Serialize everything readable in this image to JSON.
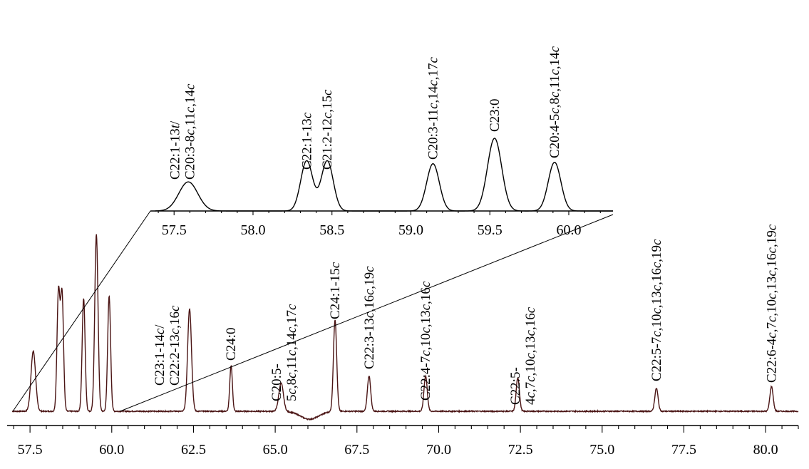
{
  "chart_data": [
    {
      "id": "main",
      "type": "line",
      "xlim": [
        56.8,
        81.0
      ],
      "tick_values": [
        57.5,
        60.0,
        62.5,
        65.0,
        67.5,
        70.0,
        72.5,
        75.0,
        77.5,
        80.0
      ],
      "tick_labels": [
        "57.5",
        "60.0",
        "62.5",
        "65.0",
        "67.5",
        "70.0",
        "72.5",
        "75.0",
        "77.5",
        "80.0"
      ],
      "minor_tick_step": 0.5,
      "line_color": "#4a1414",
      "peaks": [
        {
          "x": 57.6,
          "h": 0.34,
          "w": 0.07
        },
        {
          "x": 58.37,
          "h": 0.67,
          "w": 0.045
        },
        {
          "x": 58.48,
          "h": 0.66,
          "w": 0.045
        },
        {
          "x": 59.14,
          "h": 0.64,
          "w": 0.045
        },
        {
          "x": 59.53,
          "h": 1.0,
          "w": 0.05
        },
        {
          "x": 59.92,
          "h": 0.65,
          "w": 0.045
        },
        {
          "x": 62.38,
          "h": 0.58,
          "w": 0.06
        },
        {
          "x": 63.65,
          "h": 0.26,
          "w": 0.04
        },
        {
          "x": 65.18,
          "h": 0.16,
          "w": 0.07
        },
        {
          "x": 66.83,
          "h": 0.52,
          "w": 0.05
        },
        {
          "x": 67.87,
          "h": 0.2,
          "w": 0.05
        },
        {
          "x": 69.6,
          "h": 0.2,
          "w": 0.05
        },
        {
          "x": 72.42,
          "h": 0.19,
          "w": 0.05
        },
        {
          "x": 76.66,
          "h": 0.13,
          "w": 0.05
        },
        {
          "x": 80.18,
          "h": 0.14,
          "w": 0.05
        }
      ],
      "dip": {
        "x": 66.05,
        "h": -0.045,
        "w": 0.28
      },
      "labels": [
        {
          "x": 61.92,
          "lines": [
            [
              [
                "C23:1-14",
                ""
              ],
              [
                "c",
                "i"
              ],
              [
                "/",
                ""
              ]
            ],
            [
              [
                "C22:2-13",
                ""
              ],
              [
                "c",
                "i"
              ],
              [
                ",16",
                ""
              ],
              [
                "c",
                "i"
              ]
            ]
          ]
        },
        {
          "x": 63.65,
          "lines": [
            [
              [
                "C24:0",
                ""
              ]
            ]
          ]
        },
        {
          "x": 65.5,
          "lines": [
            [
              [
                "C20:5-",
                ""
              ]
            ],
            [
              [
                "5",
                ""
              ],
              [
                "c",
                "i"
              ],
              [
                ",8",
                ""
              ],
              [
                "c",
                "i"
              ],
              [
                ",11",
                ""
              ],
              [
                "c",
                "i"
              ],
              [
                ",14",
                ""
              ],
              [
                "c",
                "i"
              ],
              [
                ",17",
                ""
              ],
              [
                "c",
                "i"
              ]
            ]
          ]
        },
        {
          "x": 66.83,
          "lines": [
            [
              [
                "C24:1-15",
                ""
              ],
              [
                "c",
                "i"
              ]
            ]
          ]
        },
        {
          "x": 67.87,
          "lines": [
            [
              [
                "C22:3-13",
                ""
              ],
              [
                "c",
                "i"
              ],
              [
                ",16",
                ""
              ],
              [
                "c",
                "i"
              ],
              [
                ",19",
                ""
              ],
              [
                "c",
                "i"
              ]
            ]
          ]
        },
        {
          "x": 69.6,
          "lines": [
            [
              [
                "C22:4-7",
                ""
              ],
              [
                "c",
                "i"
              ],
              [
                ",10",
                ""
              ],
              [
                "c",
                "i"
              ],
              [
                ",13",
                ""
              ],
              [
                "c",
                "i"
              ],
              [
                ",16",
                ""
              ],
              [
                "c",
                "i"
              ]
            ]
          ]
        },
        {
          "x": 72.8,
          "lines": [
            [
              [
                "C22:5-",
                ""
              ]
            ],
            [
              [
                "4",
                ""
              ],
              [
                "c",
                "i"
              ],
              [
                ",7",
                ""
              ],
              [
                "c",
                "i"
              ],
              [
                ",10",
                ""
              ],
              [
                "c",
                "i"
              ],
              [
                ",13",
                ""
              ],
              [
                "c",
                "i"
              ],
              [
                ",16",
                ""
              ],
              [
                "c",
                "i"
              ]
            ]
          ]
        },
        {
          "x": 76.66,
          "lines": [
            [
              [
                "C22:5-7",
                ""
              ],
              [
                "c",
                "i"
              ],
              [
                ",10",
                ""
              ],
              [
                "c",
                "i"
              ],
              [
                ",13",
                ""
              ],
              [
                "c",
                "i"
              ],
              [
                ",16",
                ""
              ],
              [
                "c",
                "i"
              ],
              [
                ",19",
                ""
              ],
              [
                "c",
                "i"
              ]
            ]
          ]
        },
        {
          "x": 80.18,
          "lines": [
            [
              [
                "C22:6-4",
                ""
              ],
              [
                "c",
                "i"
              ],
              [
                ",7",
                ""
              ],
              [
                "c",
                "i"
              ],
              [
                ",10",
                ""
              ],
              [
                "c",
                "i"
              ],
              [
                ",13",
                ""
              ],
              [
                "c",
                "i"
              ],
              [
                ",16",
                ""
              ],
              [
                "c",
                "i"
              ],
              [
                ",19",
                ""
              ],
              [
                "c",
                "i"
              ]
            ]
          ]
        }
      ]
    },
    {
      "id": "inset",
      "type": "line",
      "xlim": [
        57.35,
        60.28
      ],
      "tick_values": [
        57.5,
        58.0,
        58.5,
        59.0,
        59.5,
        60.0
      ],
      "tick_labels": [
        "57.5",
        "58.0",
        "58.5",
        "59.0",
        "59.5",
        "60.0"
      ],
      "minor_tick_step": 0.1,
      "line_color": "#000000",
      "zoom_of": [
        56.8,
        60.3
      ],
      "peaks": [
        {
          "x": 57.59,
          "h": 0.4,
          "w": 0.06
        },
        {
          "x": 58.34,
          "h": 0.69,
          "w": 0.038
        },
        {
          "x": 58.47,
          "h": 0.69,
          "w": 0.038
        },
        {
          "x": 59.14,
          "h": 0.65,
          "w": 0.04
        },
        {
          "x": 59.53,
          "h": 1.0,
          "w": 0.045
        },
        {
          "x": 59.91,
          "h": 0.67,
          "w": 0.04
        }
      ],
      "labels": [
        {
          "x": 57.6,
          "lines": [
            [
              [
                "C22:1-13",
                ""
              ],
              [
                "t",
                "i"
              ],
              [
                "/",
                ""
              ]
            ],
            [
              [
                "C20:3-8",
                ""
              ],
              [
                "c",
                "i"
              ],
              [
                ",11",
                ""
              ],
              [
                "c",
                "i"
              ],
              [
                ",14",
                ""
              ],
              [
                "c",
                "i"
              ]
            ]
          ]
        },
        {
          "x": 58.34,
          "lines": [
            [
              [
                "C22:1-13",
                ""
              ],
              [
                "c",
                "i"
              ]
            ]
          ]
        },
        {
          "x": 58.47,
          "lines": [
            [
              [
                "C21:2-12",
                ""
              ],
              [
                "c",
                "i"
              ],
              [
                ",15",
                ""
              ],
              [
                "c",
                "i"
              ]
            ]
          ]
        },
        {
          "x": 59.14,
          "lines": [
            [
              [
                "C20:3-11",
                ""
              ],
              [
                "c",
                "i"
              ],
              [
                ",14",
                ""
              ],
              [
                "c",
                "i"
              ],
              [
                ",17",
                ""
              ],
              [
                "c",
                "i"
              ]
            ]
          ]
        },
        {
          "x": 59.53,
          "lines": [
            [
              [
                "C23:0",
                ""
              ]
            ]
          ]
        },
        {
          "x": 59.91,
          "lines": [
            [
              [
                "C20:4-5",
                ""
              ],
              [
                "c",
                "i"
              ],
              [
                ",8",
                ""
              ],
              [
                "c",
                "i"
              ],
              [
                ",11",
                ""
              ],
              [
                "c",
                "i"
              ],
              [
                ",14",
                ""
              ],
              [
                "c",
                "i"
              ]
            ]
          ]
        }
      ]
    }
  ]
}
